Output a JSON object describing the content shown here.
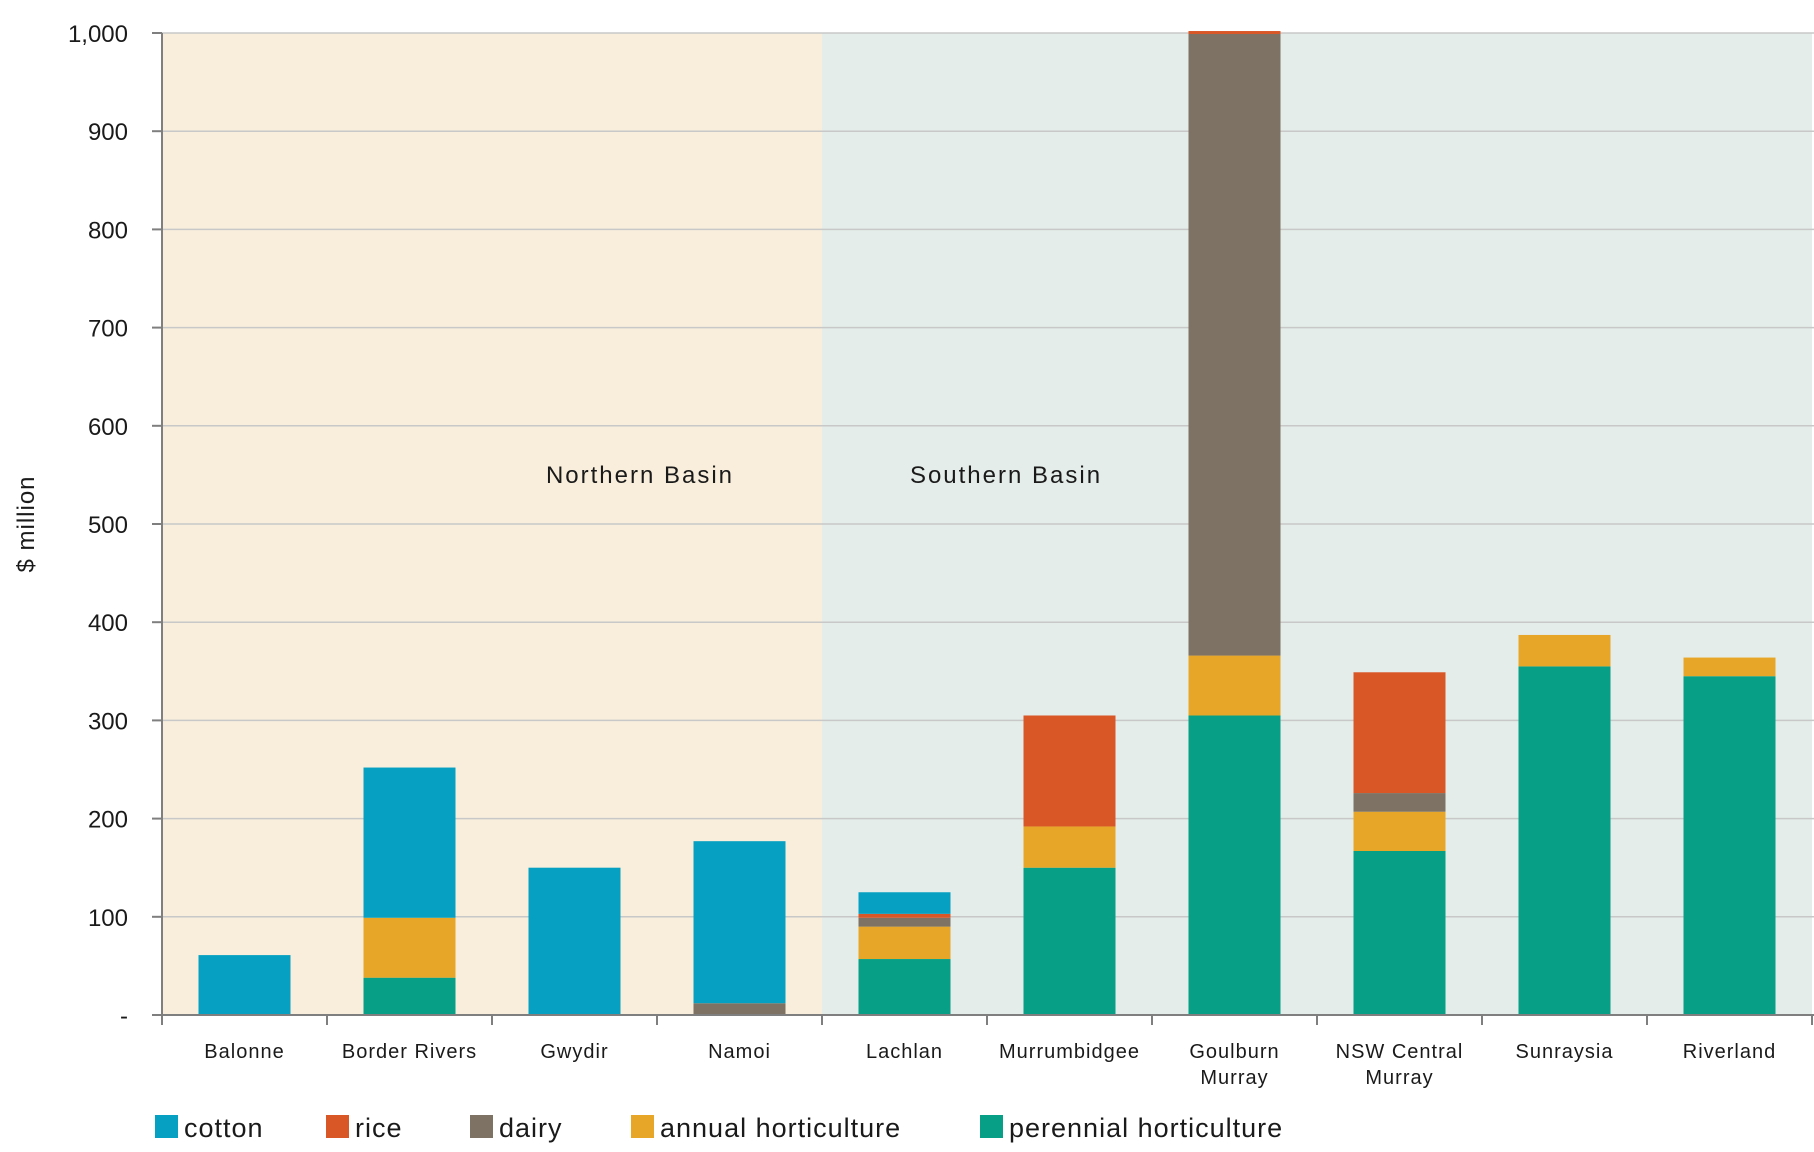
{
  "chart_data": {
    "type": "bar",
    "stacked": true,
    "title": "",
    "xlabel": "",
    "ylabel": "$ million",
    "ylim": [
      0,
      1000
    ],
    "yticks": [
      0,
      100,
      200,
      300,
      400,
      500,
      600,
      700,
      800,
      900,
      1000
    ],
    "ytick_labels": [
      "-",
      "100",
      "200",
      "300",
      "400",
      "500",
      "600",
      "700",
      "800",
      "900",
      "1,000"
    ],
    "grid": true,
    "legend_position": "bottom",
    "categories": [
      [
        "Balonne"
      ],
      [
        "Border Rivers"
      ],
      [
        "Gwydir"
      ],
      [
        "Namoi"
      ],
      [
        "Lachlan"
      ],
      [
        "Murrumbidgee"
      ],
      [
        "Goulburn",
        "Murray"
      ],
      [
        "NSW Central",
        "Murray"
      ],
      [
        "Sunraysia"
      ],
      [
        "Riverland"
      ]
    ],
    "regions": [
      {
        "label": "Northern Basin",
        "first_category": 0,
        "last_category": 3,
        "color": "#f9eedc"
      },
      {
        "label": "Southern Basin",
        "first_category": 4,
        "last_category": 9,
        "color": "#e4ede9"
      }
    ],
    "series": [
      {
        "name": "perennial horticulture",
        "color": "#07a086",
        "values": [
          0,
          38,
          0,
          0,
          57,
          150,
          305,
          167,
          355,
          345
        ]
      },
      {
        "name": "annual horticulture",
        "color": "#e8a628",
        "values": [
          0,
          61,
          0,
          0,
          33,
          42,
          61,
          40,
          32,
          19
        ]
      },
      {
        "name": "dairy",
        "color": "#7d7264",
        "values": [
          0,
          0,
          0,
          12,
          9,
          0,
          633,
          19,
          0,
          0
        ]
      },
      {
        "name": "rice",
        "color": "#d95627",
        "values": [
          0,
          0,
          0,
          0,
          4,
          113,
          3,
          123,
          0,
          0
        ]
      },
      {
        "name": "cotton",
        "color": "#06a0c2",
        "values": [
          61,
          153,
          150,
          165,
          22,
          0,
          0,
          0,
          0,
          0
        ]
      }
    ],
    "legend_order": [
      "cotton",
      "rice",
      "dairy",
      "annual horticulture",
      "perennial horticulture"
    ]
  }
}
